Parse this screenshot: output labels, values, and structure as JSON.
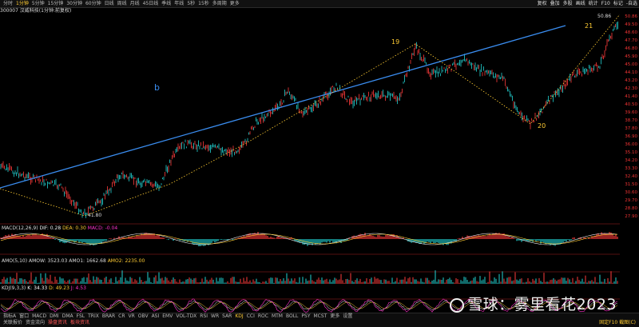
{
  "toolbar": {
    "periods": [
      "分时",
      "1分钟",
      "5分钟",
      "15分钟",
      "30分钟",
      "60分钟",
      "日线",
      "周线",
      "月线",
      "45日线",
      "季线",
      "年线",
      "5秒",
      "15秒",
      "多周期",
      "更多"
    ],
    "selected_index": 1,
    "right_buttons": [
      "复权",
      "叠加",
      "多股",
      "画线",
      "统计",
      "F10",
      "标记",
      "-自选"
    ]
  },
  "stock": {
    "label": "300007 汉威科技(1分钟:前复权)"
  },
  "price_axis": [
    "50.86",
    "49.50",
    "48.60",
    "47.70",
    "46.80",
    "45.90",
    "45.00",
    "44.10",
    "43.20",
    "42.30",
    "41.40",
    "40.50",
    "39.60",
    "38.70",
    "37.80",
    "36.90",
    "36.00",
    "35.10",
    "34.20",
    "33.30",
    "32.40",
    "31.50",
    "30.60",
    "29.70",
    "28.80",
    "27.90"
  ],
  "price_axis_top": "50.86",
  "annotations": {
    "low_price": "41.80",
    "high_price": "50.86",
    "wave_19": "19",
    "wave_20": "20",
    "wave_21": "21",
    "letter_b": "b"
  },
  "macd": {
    "label": "MACD(12,26,9)",
    "dif": "DIF: 0.28",
    "dea": "DEA: 0.30",
    "macd": "MACD: -0.04"
  },
  "amo": {
    "label": "AMO(5,10)",
    "amow": "AMOW: 3523.03",
    "amo1": "AMO1: 1662.68",
    "amo2": "AMO2: 2235.00"
  },
  "kdj": {
    "label": "KDJ(9,3,3)",
    "k": "K: 34.33",
    "d": "D: 49.23",
    "j": "J: 4.53"
  },
  "indicators": {
    "items": [
      "指标A",
      "窗口",
      "MACD",
      "DMI",
      "DMA",
      "FSL",
      "TRIX",
      "BRAR",
      "CR",
      "VR",
      "OBV",
      "ASI",
      "EMV",
      "VOL-TDX",
      "RSI",
      "WR",
      "SAR",
      "KDJ",
      "CCI",
      "ROC",
      "MTM",
      "BOLL",
      "PSY",
      "MCST",
      "更多",
      "设置"
    ],
    "selected_index": 17
  },
  "bottom_links": [
    "关联报价",
    "资金流向",
    "操盘资讯",
    "板块资讯"
  ],
  "bottom_right": "固定F10 截图(C)",
  "watermark": "雪球：雾里看花2023",
  "colors": {
    "up": "#ff3b3b",
    "down": "#22d3d3",
    "trend": "#3a8df0",
    "wave": "#ffcc33",
    "macd_dif": "#f0f0f0",
    "macd_dea": "#ffcc33",
    "kdj_k": "#ffffff",
    "kdj_d": "#ffcc33",
    "kdj_j": "#ff33cc"
  }
}
